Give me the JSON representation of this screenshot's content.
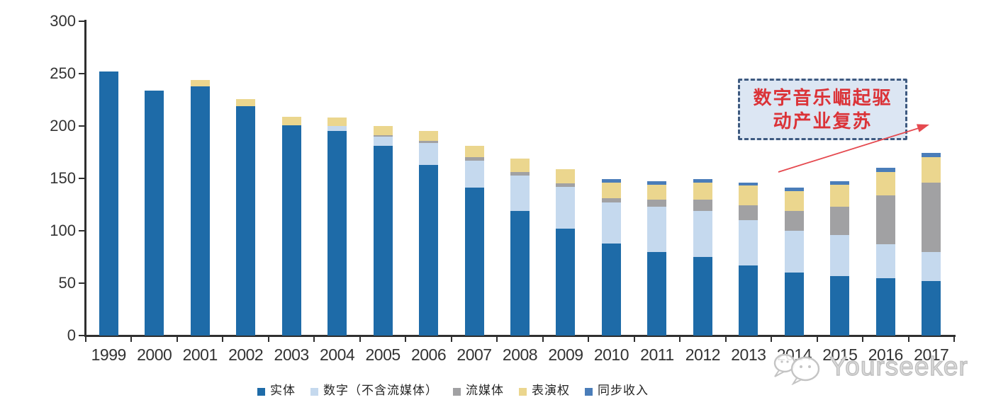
{
  "chart_data": {
    "type": "bar",
    "stacked": true,
    "title": "",
    "xlabel": "",
    "ylabel": "",
    "categories": [
      "1999",
      "2000",
      "2001",
      "2002",
      "2003",
      "2004",
      "2005",
      "2006",
      "2007",
      "2008",
      "2009",
      "2010",
      "2011",
      "2012",
      "2013",
      "2014",
      "2015",
      "2016",
      "2017"
    ],
    "series": [
      {
        "name": "实体",
        "color": "#1E6BA8",
        "values": [
          252,
          234,
          238,
          219,
          201,
          195,
          181,
          163,
          141,
          119,
          102,
          88,
          80,
          75,
          67,
          60,
          57,
          55,
          52
        ]
      },
      {
        "name": "数字（不含流媒体）",
        "color": "#C5D9EE",
        "values": [
          0,
          0,
          0,
          0,
          0,
          5,
          9,
          21,
          26,
          34,
          40,
          39,
          43,
          44,
          43,
          40,
          39,
          32,
          28
        ]
      },
      {
        "name": "流媒体",
        "color": "#A1A1A3",
        "values": [
          0,
          0,
          0,
          0,
          0,
          0,
          1,
          2,
          3,
          3,
          3,
          4,
          7,
          11,
          14,
          19,
          27,
          47,
          66
        ]
      },
      {
        "name": "表演权",
        "color": "#EBD68E",
        "values": [
          0,
          0,
          6,
          7,
          8,
          8,
          9,
          9,
          11,
          13,
          14,
          15,
          14,
          16,
          19,
          19,
          21,
          22,
          24
        ]
      },
      {
        "name": "同步收入",
        "color": "#4A7DB9",
        "values": [
          0,
          0,
          0,
          0,
          0,
          0,
          0,
          0,
          0,
          0,
          0,
          3,
          3,
          3,
          3,
          3,
          3,
          4,
          4
        ]
      }
    ],
    "ylim": [
      0,
      300
    ],
    "yticks": [
      "0",
      "50",
      "100",
      "150",
      "200",
      "250",
      "300"
    ],
    "grid": false,
    "legend_position": "bottom"
  },
  "annotation": {
    "line1": "数字音乐崛起驱",
    "line2": "动产业复苏",
    "text_color": "#DB3338",
    "box_fill": "#DCE6F3",
    "box_border_color": "#3E5A80",
    "arrow_color": "#E5494F"
  },
  "watermark": {
    "text": "Yourseeker",
    "logo_icon": "chat-bubbles-icon",
    "color": "#C6C6C6"
  },
  "colors": {
    "axis": "#2F2F2F",
    "tick_label": "#333333",
    "background": "#FFFFFF"
  }
}
